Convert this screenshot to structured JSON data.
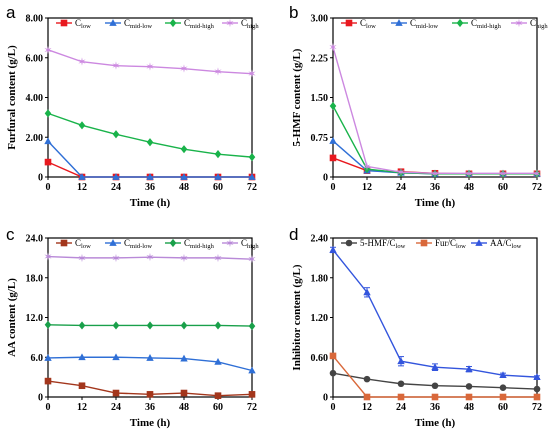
{
  "chart_data": [
    {
      "panel": "a",
      "type": "line",
      "xlabel": "Time (h)",
      "ylabel": "Furfural content (g/L)",
      "xlim": [
        0,
        72
      ],
      "ylim": [
        0,
        8
      ],
      "xticks": [
        "0",
        "12",
        "24",
        "36",
        "48",
        "60",
        "72"
      ],
      "yticks": [
        "0",
        "2.00",
        "4.00",
        "6.00",
        "8.00"
      ],
      "legend_position": "top",
      "x": [
        0,
        12,
        24,
        36,
        48,
        60,
        72
      ],
      "series": [
        {
          "name": "C",
          "sub": "low",
          "color": "#e8191f",
          "marker": "square",
          "values": [
            0.75,
            0.0,
            0.0,
            0.0,
            0.0,
            0.0,
            0.0
          ]
        },
        {
          "name": "C",
          "sub": "mid-low",
          "color": "#2f6fd6",
          "marker": "triangle",
          "values": [
            1.8,
            0.0,
            0.0,
            0.0,
            0.0,
            0.0,
            0.0
          ]
        },
        {
          "name": "C",
          "sub": "mid-high",
          "color": "#19b34a",
          "marker": "diamond",
          "values": [
            3.2,
            2.6,
            2.15,
            1.75,
            1.4,
            1.15,
            1.0
          ]
        },
        {
          "name": "C",
          "sub": "high",
          "color": "#cc88e0",
          "marker": "star",
          "values": [
            6.4,
            5.8,
            5.6,
            5.55,
            5.45,
            5.3,
            5.2
          ]
        }
      ]
    },
    {
      "panel": "b",
      "type": "line",
      "xlabel": "Time (h)",
      "ylabel": "5-HMF content (g/L)",
      "xlim": [
        0,
        72
      ],
      "ylim": [
        0,
        3
      ],
      "xticks": [
        "0",
        "12",
        "24",
        "36",
        "48",
        "60",
        "72"
      ],
      "yticks": [
        "0",
        "0.75",
        "1.50",
        "2.25",
        "3.00"
      ],
      "legend_position": "top",
      "x": [
        0,
        12,
        24,
        36,
        48,
        60,
        72
      ],
      "series": [
        {
          "name": "C",
          "sub": "low",
          "color": "#e8191f",
          "marker": "square",
          "values": [
            0.36,
            0.12,
            0.1,
            0.07,
            0.06,
            0.06,
            0.06
          ]
        },
        {
          "name": "C",
          "sub": "mid-low",
          "color": "#2f6fd6",
          "marker": "triangle",
          "values": [
            0.68,
            0.12,
            0.08,
            0.06,
            0.06,
            0.06,
            0.06
          ]
        },
        {
          "name": "C",
          "sub": "mid-high",
          "color": "#19b34a",
          "marker": "diamond",
          "values": [
            1.34,
            0.15,
            0.08,
            0.06,
            0.06,
            0.06,
            0.06
          ]
        },
        {
          "name": "C",
          "sub": "high",
          "color": "#cc88e0",
          "marker": "star",
          "values": [
            2.45,
            0.2,
            0.09,
            0.07,
            0.07,
            0.07,
            0.07
          ]
        }
      ]
    },
    {
      "panel": "c",
      "type": "line",
      "xlabel": "Time (h)",
      "ylabel": "AA content (g/L)",
      "xlim": [
        0,
        72
      ],
      "ylim": [
        0,
        24
      ],
      "xticks": [
        "0",
        "12",
        "24",
        "36",
        "48",
        "60",
        "72"
      ],
      "yticks": [
        "0",
        "6.0",
        "12.0",
        "18.0",
        "24.0"
      ],
      "legend_position": "top",
      "x": [
        0,
        12,
        24,
        36,
        48,
        60,
        72
      ],
      "series": [
        {
          "name": "C",
          "sub": "low",
          "color": "#a3361c",
          "marker": "square",
          "values": [
            2.4,
            1.7,
            0.6,
            0.4,
            0.6,
            0.2,
            0.4
          ]
        },
        {
          "name": "C",
          "sub": "mid-low",
          "color": "#2f6fd6",
          "marker": "triangle",
          "values": [
            5.9,
            6.0,
            6.0,
            5.9,
            5.8,
            5.3,
            4.0
          ]
        },
        {
          "name": "C",
          "sub": "mid-high",
          "color": "#19a04a",
          "marker": "diamond",
          "values": [
            10.9,
            10.8,
            10.8,
            10.8,
            10.8,
            10.8,
            10.7
          ]
        },
        {
          "name": "C",
          "sub": "high",
          "color": "#b98ad8",
          "marker": "star",
          "values": [
            21.2,
            21.0,
            21.0,
            21.1,
            21.0,
            21.0,
            20.8
          ]
        }
      ]
    },
    {
      "panel": "d",
      "type": "line",
      "xlabel": "Time (h)",
      "ylabel": "Inhibitor content (g/L)",
      "xlim": [
        0,
        72
      ],
      "ylim": [
        0,
        2.4
      ],
      "xticks": [
        "0",
        "12",
        "24",
        "36",
        "48",
        "60",
        "72"
      ],
      "yticks": [
        "0",
        "0.60",
        "1.20",
        "1.80",
        "2.40"
      ],
      "legend_position": "top",
      "x": [
        0,
        12,
        24,
        36,
        48,
        60,
        72
      ],
      "series": [
        {
          "name": "5-HMF/C",
          "sub": "low",
          "color": "#444444",
          "marker": "circle",
          "values": [
            0.36,
            0.27,
            0.2,
            0.17,
            0.16,
            0.14,
            0.12
          ]
        },
        {
          "name": "Fur/C",
          "sub": "low",
          "color": "#d9683a",
          "marker": "square",
          "values": [
            0.62,
            0.0,
            0.0,
            0.0,
            0.0,
            0.0,
            0.0
          ]
        },
        {
          "name": "AA/C",
          "sub": "low",
          "color": "#3355dd",
          "marker": "triangle",
          "values": [
            2.22,
            1.58,
            0.54,
            0.45,
            0.42,
            0.33,
            0.3
          ],
          "errors": [
            0.04,
            0.07,
            0.07,
            0.05,
            0.04,
            0.03,
            0.02
          ]
        }
      ]
    }
  ]
}
